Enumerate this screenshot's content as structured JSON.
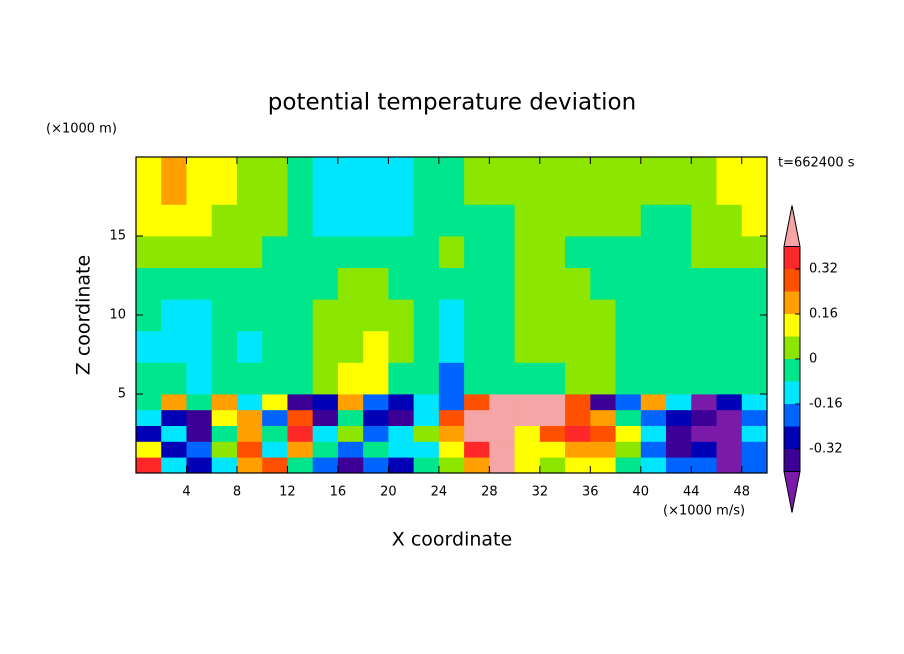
{
  "chart_data": {
    "type": "contour",
    "title": "potential temperature deviation",
    "x_label": "X coordinate",
    "y_label": "Z coordinate",
    "x_unit": "(×1000 m/s)",
    "y_unit": "(×1000 m)",
    "annotation": "t=662400 s",
    "xlim": [
      0,
      50
    ],
    "ylim": [
      0,
      20
    ],
    "xticks": [
      4,
      8,
      12,
      16,
      20,
      24,
      28,
      32,
      36,
      40,
      44,
      48
    ],
    "yticks": [
      5,
      10,
      15
    ],
    "x_bins": [
      0,
      2,
      4,
      6,
      8,
      10,
      12,
      14,
      16,
      18,
      20,
      22,
      24,
      26,
      28,
      30,
      32,
      34,
      36,
      38,
      40,
      42,
      44,
      46,
      48,
      50
    ],
    "y_bins": [
      0,
      1,
      2,
      3,
      4,
      5,
      7,
      9,
      11,
      13,
      15,
      17,
      20
    ],
    "z": [
      [
        0.36,
        -0.12,
        -0.28,
        -0.12,
        0.2,
        0.28,
        -0.04,
        -0.2,
        -0.36,
        -0.2,
        -0.28,
        -0.04,
        0.04,
        0.2,
        0.45,
        0.12,
        0.04,
        0.12,
        0.12,
        -0.04,
        -0.12,
        -0.2,
        -0.2,
        -0.45,
        -0.2
      ],
      [
        0.12,
        -0.28,
        -0.2,
        0.04,
        0.28,
        -0.12,
        0.2,
        -0.04,
        -0.2,
        -0.04,
        -0.12,
        -0.12,
        0.12,
        0.36,
        0.45,
        0.12,
        0.12,
        0.2,
        0.2,
        0.04,
        -0.2,
        -0.36,
        -0.28,
        -0.45,
        -0.2
      ],
      [
        -0.28,
        -0.12,
        -0.36,
        -0.04,
        0.2,
        -0.04,
        0.36,
        -0.12,
        0.04,
        -0.2,
        -0.12,
        0.04,
        0.2,
        0.45,
        0.45,
        0.12,
        0.28,
        0.36,
        0.28,
        0.12,
        -0.12,
        -0.36,
        -0.45,
        -0.45,
        -0.12
      ],
      [
        -0.12,
        -0.28,
        -0.36,
        0.12,
        0.2,
        -0.2,
        0.28,
        -0.36,
        -0.04,
        -0.28,
        -0.36,
        -0.12,
        0.28,
        0.45,
        0.45,
        0.45,
        0.45,
        0.28,
        0.2,
        -0.04,
        -0.2,
        -0.28,
        -0.36,
        -0.45,
        -0.2
      ],
      [
        -0.04,
        0.2,
        -0.04,
        0.2,
        -0.12,
        0.12,
        -0.36,
        -0.28,
        0.2,
        -0.2,
        -0.28,
        -0.12,
        -0.2,
        0.28,
        0.45,
        0.45,
        0.45,
        0.28,
        -0.36,
        -0.2,
        0.2,
        -0.12,
        -0.45,
        -0.28,
        -0.12
      ],
      [
        -0.04,
        -0.04,
        -0.12,
        -0.04,
        -0.04,
        -0.04,
        -0.04,
        0.04,
        0.12,
        0.12,
        -0.04,
        -0.04,
        -0.2,
        -0.04,
        -0.04,
        -0.04,
        -0.04,
        0.04,
        0.04,
        -0.04,
        -0.04,
        -0.04,
        -0.04,
        -0.04,
        -0.04
      ],
      [
        -0.12,
        -0.12,
        -0.12,
        -0.04,
        -0.12,
        -0.04,
        -0.04,
        0.04,
        0.04,
        0.12,
        0.04,
        -0.04,
        -0.12,
        -0.04,
        -0.04,
        0.04,
        0.04,
        0.04,
        0.04,
        -0.04,
        -0.04,
        -0.04,
        -0.04,
        -0.04,
        -0.04
      ],
      [
        -0.04,
        -0.12,
        -0.12,
        -0.04,
        -0.04,
        -0.04,
        -0.04,
        0.04,
        0.04,
        0.04,
        0.04,
        -0.04,
        -0.12,
        -0.04,
        -0.04,
        0.04,
        0.04,
        0.04,
        0.04,
        -0.04,
        -0.04,
        -0.04,
        -0.04,
        -0.04,
        -0.04
      ],
      [
        -0.04,
        -0.04,
        -0.04,
        -0.04,
        -0.04,
        -0.04,
        -0.04,
        -0.04,
        0.04,
        0.04,
        -0.04,
        -0.04,
        -0.04,
        -0.04,
        -0.04,
        0.04,
        0.04,
        0.04,
        -0.04,
        -0.04,
        -0.04,
        -0.04,
        -0.04,
        -0.04,
        -0.04
      ],
      [
        0.04,
        0.04,
        0.04,
        0.04,
        0.04,
        -0.04,
        -0.04,
        -0.04,
        -0.04,
        -0.04,
        -0.04,
        -0.04,
        0.04,
        -0.04,
        -0.04,
        0.04,
        0.04,
        -0.04,
        -0.04,
        -0.04,
        -0.04,
        -0.04,
        0.04,
        0.04,
        0.04
      ],
      [
        0.12,
        0.12,
        0.12,
        0.04,
        0.04,
        0.04,
        -0.04,
        -0.12,
        -0.12,
        -0.12,
        -0.12,
        -0.04,
        -0.04,
        -0.04,
        -0.04,
        0.04,
        0.04,
        0.04,
        0.04,
        0.04,
        -0.04,
        -0.04,
        0.04,
        0.04,
        0.12
      ],
      [
        0.12,
        0.2,
        0.12,
        0.12,
        0.04,
        0.04,
        -0.04,
        -0.12,
        -0.12,
        -0.12,
        -0.12,
        -0.04,
        -0.04,
        0.04,
        0.04,
        0.04,
        0.04,
        0.04,
        0.04,
        0.04,
        0.04,
        0.04,
        0.04,
        0.12,
        0.12
      ]
    ],
    "levels": [
      -0.4,
      -0.32,
      -0.24,
      -0.16,
      -0.08,
      0,
      0.08,
      0.16,
      0.24,
      0.32,
      0.4
    ],
    "colors": [
      "#7a1aa8",
      "#3c0096",
      "#0000b4",
      "#0064ff",
      "#00e6ff",
      "#00e68c",
      "#8ce600",
      "#ffff00",
      "#ffa000",
      "#ff5000",
      "#ff2828",
      "#f5a5a5"
    ],
    "colorbar_ticks": [
      -0.32,
      -0.16,
      0,
      0.16,
      0.32
    ]
  }
}
